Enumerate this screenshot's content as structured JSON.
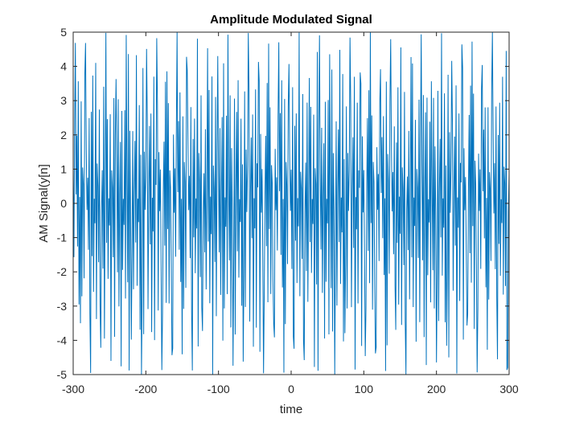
{
  "chart_data": {
    "type": "line",
    "title": "Amplitude Modulated Signal",
    "xlabel": "time",
    "ylabel": "AM Signal(y[n]",
    "xlim": [
      -300,
      300
    ],
    "ylim": [
      -5,
      5
    ],
    "xticks": [
      "-300",
      "-200",
      "-100",
      "0",
      "100",
      "200",
      "300"
    ],
    "yticks": [
      "-5",
      "-4",
      "-3",
      "-2",
      "-1",
      "0",
      "1",
      "2",
      "3",
      "4",
      "5"
    ],
    "grid": false,
    "series": [
      {
        "color": "#0072bd",
        "x_start": -300,
        "x_end": 300,
        "x_step": 1,
        "envelope_peak": 5,
        "values_approx": [
          1.2,
          -2.1,
          3.5,
          -4.0,
          0.4,
          2.8,
          -1.6,
          4.1,
          -3.2,
          0.2,
          -0.9,
          3.9,
          -4.3,
          1.5,
          0.7,
          -2.6,
          4.5,
          -4.9,
          2.2,
          -0.3
        ]
      }
    ]
  }
}
